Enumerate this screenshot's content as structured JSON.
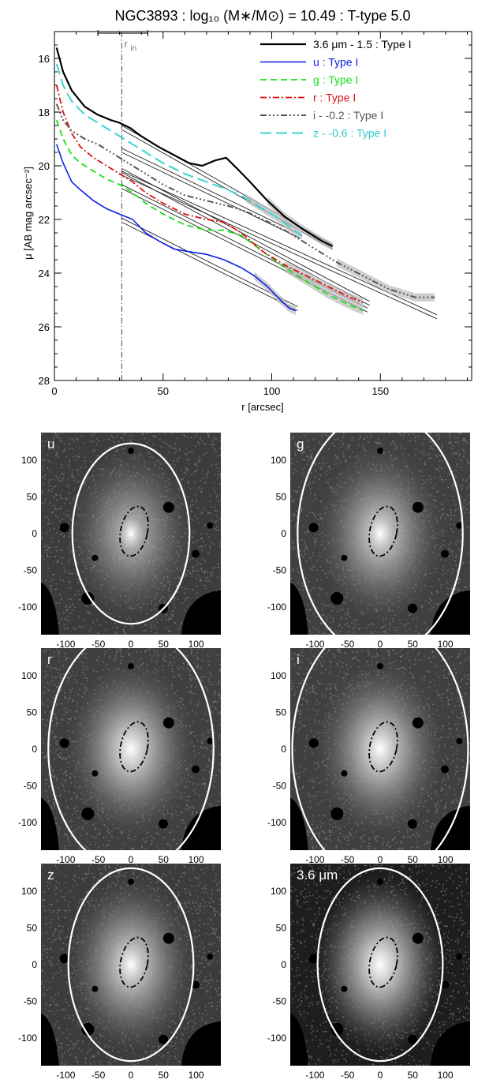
{
  "chart_data": {
    "type": "line",
    "title": "NGC3893 : log₁₀ (M∗/M⊙) = 10.49 : T-type 5.0",
    "xlabel": "r [arcsec]",
    "ylabel": "μ [AB mag arcsec⁻²]",
    "xlim": [
      0,
      192
    ],
    "ylim": [
      28,
      15
    ],
    "y_inverted": true,
    "xticks": [
      "0",
      "50",
      "100",
      "150"
    ],
    "yticks": [
      "16",
      "18",
      "20",
      "22",
      "24",
      "26",
      "28"
    ],
    "r_in_label": "r",
    "r_in_subscript": "in",
    "r_in": 31,
    "r_in_range": [
      20,
      43
    ],
    "legend_position": "top-right",
    "series": [
      {
        "name": "3.6 μm - 1.5 : Type I",
        "color": "#000000",
        "label_color": "#000000",
        "dash": "solid",
        "width": 2.2,
        "x": [
          1,
          4,
          8,
          14,
          20,
          26,
          30,
          35,
          40,
          48,
          55,
          62,
          68,
          74,
          79,
          84,
          90,
          98,
          106,
          115,
          123,
          128
        ],
        "y": [
          15.6,
          16.5,
          17.2,
          17.8,
          18.1,
          18.3,
          18.4,
          18.6,
          18.9,
          19.3,
          19.6,
          19.9,
          20.0,
          19.8,
          19.7,
          20.1,
          20.6,
          21.3,
          21.9,
          22.4,
          22.8,
          23.0
        ],
        "fits": [
          {
            "x": [
              31,
              128
            ],
            "y": [
              18.5,
              22.95
            ]
          },
          {
            "x": [
              31,
              128
            ],
            "y": [
              18.65,
              23.1
            ]
          }
        ]
      },
      {
        "name": "u : Type I",
        "color": "#0b1fe6",
        "label_color": "#0b1fe6",
        "dash": "solid",
        "width": 1.6,
        "x": [
          1,
          4,
          8,
          12,
          18,
          24,
          30,
          36,
          42,
          48,
          55,
          62,
          70,
          78,
          86,
          92,
          98,
          104,
          108,
          111
        ],
        "y": [
          19.2,
          19.9,
          20.6,
          20.9,
          21.3,
          21.6,
          21.8,
          22.0,
          22.5,
          22.8,
          23.1,
          23.2,
          23.3,
          23.5,
          23.8,
          24.1,
          24.5,
          25.0,
          25.3,
          25.4
        ],
        "fits": [
          {
            "x": [
              31,
              112
            ],
            "y": [
              21.95,
              25.25
            ]
          },
          {
            "x": [
              31,
              112
            ],
            "y": [
              22.1,
              25.4
            ]
          }
        ]
      },
      {
        "name": "g : Type I",
        "color": "#18e018",
        "label_color": "#18e018",
        "dash": "dashed",
        "width": 1.8,
        "x": [
          1,
          4,
          8,
          12,
          18,
          24,
          30,
          36,
          42,
          50,
          60,
          70,
          78,
          86,
          96,
          106,
          116,
          126,
          136,
          142
        ],
        "y": [
          18.3,
          19.0,
          19.6,
          19.9,
          20.2,
          20.5,
          20.7,
          21.0,
          21.4,
          21.8,
          22.2,
          22.4,
          22.4,
          22.6,
          23.2,
          23.8,
          24.3,
          24.8,
          25.2,
          25.4
        ],
        "fits": [
          {
            "x": [
              31,
              144
            ],
            "y": [
              20.7,
              25.3
            ]
          },
          {
            "x": [
              31,
              144
            ],
            "y": [
              20.85,
              25.45
            ]
          }
        ]
      },
      {
        "name": "r : Type I",
        "color": "#e01010",
        "label_color": "#e01010",
        "dash": "dashdot",
        "width": 1.8,
        "x": [
          1,
          4,
          8,
          12,
          18,
          24,
          30,
          36,
          42,
          50,
          60,
          70,
          78,
          86,
          96,
          106,
          116,
          126,
          136,
          142
        ],
        "y": [
          17.0,
          18.0,
          18.8,
          19.3,
          19.7,
          20.0,
          20.3,
          20.6,
          21.0,
          21.4,
          21.8,
          22.0,
          22.1,
          22.5,
          23.2,
          23.7,
          24.1,
          24.5,
          24.9,
          25.1
        ],
        "fits": [
          {
            "x": [
              31,
              145
            ],
            "y": [
              20.1,
              25.05
            ]
          },
          {
            "x": [
              31,
              145
            ],
            "y": [
              20.25,
              25.2
            ]
          }
        ]
      },
      {
        "name": "i - -0.2 : Type I",
        "color": "#555555",
        "label_color": "#555555",
        "dash": "dashdotdotdot",
        "width": 2.0,
        "x": [
          1,
          4,
          8,
          14,
          20,
          26,
          30,
          36,
          42,
          50,
          60,
          70,
          80,
          88,
          96,
          106,
          118,
          130,
          142,
          154,
          166,
          175
        ],
        "y": [
          17.7,
          18.3,
          18.7,
          19.0,
          19.2,
          19.5,
          19.7,
          20.0,
          20.3,
          20.7,
          21.1,
          21.3,
          21.5,
          21.7,
          22.0,
          22.4,
          23.0,
          23.6,
          24.1,
          24.6,
          24.9,
          24.9
        ],
        "fits": [
          {
            "x": [
              31,
              176
            ],
            "y": [
              20.2,
              25.55
            ]
          },
          {
            "x": [
              31,
              176
            ],
            "y": [
              20.35,
              25.7
            ]
          }
        ]
      },
      {
        "name": "z - -0.6 : Type I",
        "color": "#3dd3d3",
        "label_color": "#2fc8c8",
        "dash": "longdash",
        "width": 2.0,
        "x": [
          1,
          4,
          8,
          14,
          20,
          26,
          30,
          36,
          42,
          50,
          60,
          70,
          80,
          88,
          96,
          104,
          110,
          114
        ],
        "y": [
          16.2,
          17.0,
          17.6,
          18.1,
          18.4,
          18.7,
          18.9,
          19.2,
          19.5,
          19.9,
          20.3,
          20.6,
          20.9,
          21.2,
          21.6,
          22.0,
          22.4,
          22.6
        ],
        "fits": [
          {
            "x": [
              31,
              113
            ],
            "y": [
              19.35,
              22.55
            ]
          },
          {
            "x": [
              31,
              113
            ],
            "y": [
              19.5,
              22.7
            ]
          }
        ]
      }
    ]
  },
  "panels": [
    {
      "label": "u",
      "ring_rx": 0.44,
      "ring_ry": 0.58,
      "bg": "#3c3c3c",
      "glow": 0.7
    },
    {
      "label": "g",
      "ring_rx": 0.62,
      "ring_ry": 0.78,
      "bg": "#404040",
      "glow": 0.85
    },
    {
      "label": "r",
      "ring_rx": 0.62,
      "ring_ry": 0.78,
      "bg": "#404040",
      "glow": 0.95
    },
    {
      "label": "i",
      "ring_rx": 0.66,
      "ring_ry": 0.84,
      "bg": "#404040",
      "glow": 0.95
    },
    {
      "label": "z",
      "ring_rx": 0.47,
      "ring_ry": 0.62,
      "bg": "#3c3c3c",
      "glow": 0.9
    },
    {
      "label": "3.6 μm",
      "ring_rx": 0.47,
      "ring_ry": 0.62,
      "bg": "#1e1e1e",
      "glow": 1.0
    }
  ],
  "panel_axes": {
    "xticks": [
      -100,
      -50,
      0,
      50,
      100
    ],
    "yticks": [
      100,
      50,
      0,
      -50,
      -100
    ],
    "xlim": [
      -138,
      138
    ],
    "ylim": [
      -138,
      138
    ]
  }
}
